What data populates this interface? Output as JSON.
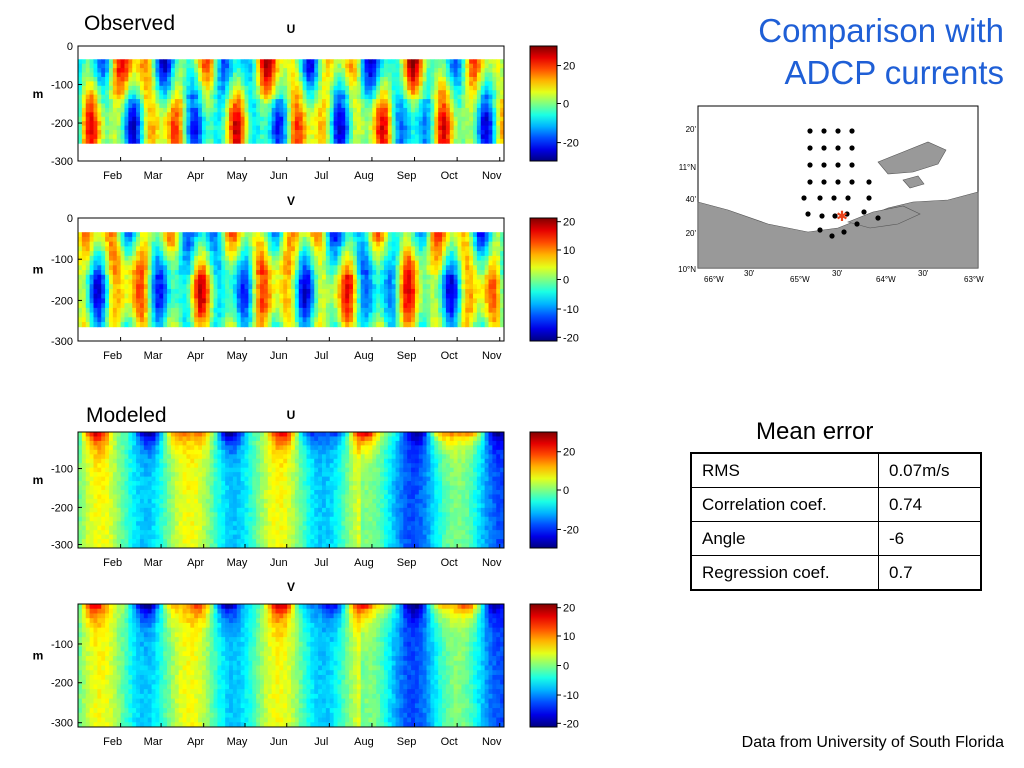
{
  "slide_title_line1": "Comparison with",
  "slide_title_line2": "ADCP currents",
  "observed_label": "Observed",
  "modeled_label": "Modeled",
  "depth_unit": "m",
  "months": [
    "Feb",
    "Mar",
    "Apr",
    "May",
    "Jun",
    "Jul",
    "Aug",
    "Sep",
    "Oct",
    "Nov"
  ],
  "colors": {
    "title": "#1f5fd6",
    "station_marker": "#e8441c"
  },
  "chart_data": [
    {
      "type": "heatmap",
      "name": "observed-u",
      "title": "U",
      "ylabel": "m",
      "y_ticks": [
        "0",
        "-100",
        "-200",
        "-300"
      ],
      "ylim": [
        -300,
        0
      ],
      "x_ticks": [
        "Feb",
        "Mar",
        "Apr",
        "May",
        "Jun",
        "Jul",
        "Aug",
        "Sep",
        "Oct",
        "Nov"
      ],
      "colorbar_ticks": [
        "20",
        "0",
        "-20"
      ],
      "clim": [
        -30,
        30
      ]
    },
    {
      "type": "heatmap",
      "name": "observed-v",
      "title": "V",
      "ylabel": "m",
      "y_ticks": [
        "0",
        "-100",
        "-200",
        "-300"
      ],
      "ylim": [
        -300,
        0
      ],
      "x_ticks": [
        "Feb",
        "Mar",
        "Apr",
        "May",
        "Jun",
        "Jul",
        "Aug",
        "Sep",
        "Oct",
        "Nov"
      ],
      "colorbar_ticks": [
        "20",
        "10",
        "0",
        "-10",
        "-20"
      ],
      "clim": [
        -20,
        20
      ]
    },
    {
      "type": "heatmap",
      "name": "modeled-u",
      "title": "U",
      "ylabel": "m",
      "y_ticks": [
        "-100",
        "-200",
        "-300"
      ],
      "ylim": [
        -310,
        0
      ],
      "x_ticks": [
        "Feb",
        "Mar",
        "Apr",
        "May",
        "Jun",
        "Jul",
        "Aug",
        "Sep",
        "Oct",
        "Nov"
      ],
      "colorbar_ticks": [
        "20",
        "0",
        "-20"
      ],
      "clim": [
        -30,
        30
      ]
    },
    {
      "type": "heatmap",
      "name": "modeled-v",
      "title": "V",
      "ylabel": "m",
      "y_ticks": [
        "-100",
        "-200",
        "-300"
      ],
      "ylim": [
        -310,
        0
      ],
      "x_ticks": [
        "Feb",
        "Mar",
        "Apr",
        "May",
        "Jun",
        "Jul",
        "Aug",
        "Sep",
        "Oct",
        "Nov"
      ],
      "colorbar_ticks": [
        "20",
        "10",
        "0",
        "-10",
        "-20"
      ],
      "clim": [
        -20,
        20
      ]
    }
  ],
  "map": {
    "lat_labels": [
      "20'",
      "11°N",
      "40'",
      "20'",
      "10°N"
    ],
    "lon_labels": [
      "66°W",
      "30'",
      "65°W",
      "30'",
      "64°W",
      "30'",
      "63°W"
    ]
  },
  "mean_error": {
    "title": "Mean error",
    "rows": [
      {
        "label": "RMS",
        "value": "0.07m/s"
      },
      {
        "label": "Correlation coef.",
        "value": "0.74"
      },
      {
        "label": "Angle",
        "value": "-6"
      },
      {
        "label": "Regression coef.",
        "value": "0.7"
      }
    ]
  },
  "credit": "Data from University of South Florida"
}
